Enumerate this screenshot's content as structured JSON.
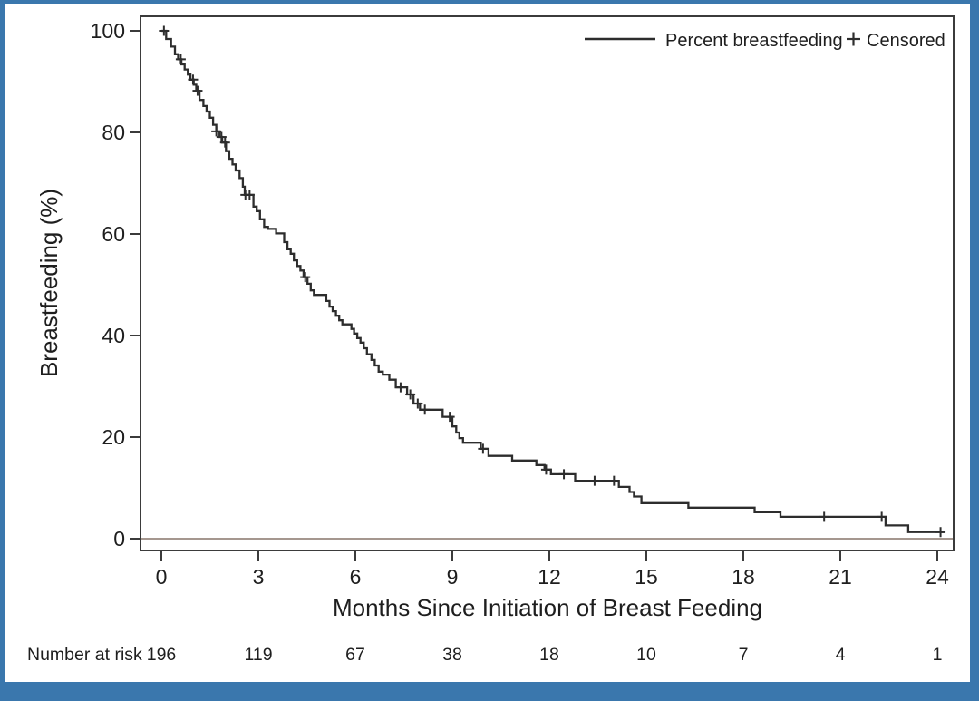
{
  "figure": {
    "background": "#ffffff",
    "border_color": "#3a77ad"
  },
  "legend": {
    "series_label": "Percent breastfeeding",
    "censored_label": "Censored"
  },
  "axes": {
    "y_label": "Breastfeeding (%)",
    "x_label": "Months Since Initiation of Breast Feeding"
  },
  "chart_data": {
    "type": "line",
    "subtype": "kaplan-meier-step",
    "title": "",
    "xlabel": "Months Since Initiation of Breast Feeding",
    "ylabel": "Breastfeeding (%)",
    "xlim": [
      0,
      24
    ],
    "ylim": [
      0,
      100
    ],
    "x_ticks": [
      0,
      3,
      6,
      9,
      12,
      15,
      18,
      21,
      24
    ],
    "y_ticks": [
      0,
      20,
      40,
      60,
      80,
      100
    ],
    "grid": false,
    "legend_position": "top-right",
    "reference_line_y": 0,
    "series": [
      {
        "name": "Percent breastfeeding",
        "start": [
          0,
          100
        ],
        "end_x": 24.25,
        "steps": [
          [
            0.15,
            98.4
          ],
          [
            0.3,
            96.9
          ],
          [
            0.42,
            95.4
          ],
          [
            0.52,
            94.4
          ],
          [
            0.62,
            93.4
          ],
          [
            0.72,
            92.4
          ],
          [
            0.82,
            91.4
          ],
          [
            0.9,
            90.4
          ],
          [
            1.0,
            89.4
          ],
          [
            1.08,
            88.2
          ],
          [
            1.18,
            86.4
          ],
          [
            1.3,
            85.2
          ],
          [
            1.4,
            84.1
          ],
          [
            1.5,
            82.9
          ],
          [
            1.6,
            81.5
          ],
          [
            1.7,
            80.2
          ],
          [
            1.8,
            79.1
          ],
          [
            1.88,
            78.0
          ],
          [
            2.0,
            76.3
          ],
          [
            2.1,
            74.8
          ],
          [
            2.2,
            73.7
          ],
          [
            2.3,
            72.5
          ],
          [
            2.42,
            71.0
          ],
          [
            2.52,
            69.3
          ],
          [
            2.58,
            67.7
          ],
          [
            2.85,
            65.4
          ],
          [
            2.95,
            64.5
          ],
          [
            3.05,
            62.9
          ],
          [
            3.18,
            61.4
          ],
          [
            3.3,
            61.0
          ],
          [
            3.55,
            60.1
          ],
          [
            3.8,
            58.4
          ],
          [
            3.9,
            57.0
          ],
          [
            4.0,
            56.1
          ],
          [
            4.1,
            54.8
          ],
          [
            4.2,
            53.7
          ],
          [
            4.3,
            52.8
          ],
          [
            4.4,
            51.5
          ],
          [
            4.52,
            50.2
          ],
          [
            4.62,
            48.9
          ],
          [
            4.72,
            48.0
          ],
          [
            5.1,
            46.8
          ],
          [
            5.2,
            45.7
          ],
          [
            5.3,
            44.8
          ],
          [
            5.4,
            43.9
          ],
          [
            5.5,
            43.0
          ],
          [
            5.6,
            42.2
          ],
          [
            5.88,
            41.3
          ],
          [
            5.96,
            40.4
          ],
          [
            6.06,
            39.5
          ],
          [
            6.16,
            38.6
          ],
          [
            6.26,
            37.5
          ],
          [
            6.36,
            36.3
          ],
          [
            6.5,
            35.2
          ],
          [
            6.6,
            34.1
          ],
          [
            6.72,
            32.9
          ],
          [
            6.85,
            32.3
          ],
          [
            7.05,
            31.3
          ],
          [
            7.25,
            29.8
          ],
          [
            7.6,
            28.4
          ],
          [
            7.8,
            26.6
          ],
          [
            8.0,
            25.4
          ],
          [
            8.7,
            24.0
          ],
          [
            9.0,
            22.1
          ],
          [
            9.12,
            20.9
          ],
          [
            9.22,
            19.8
          ],
          [
            9.33,
            18.9
          ],
          [
            9.88,
            17.7
          ],
          [
            10.12,
            16.3
          ],
          [
            10.85,
            15.4
          ],
          [
            11.6,
            14.5
          ],
          [
            11.85,
            13.6
          ],
          [
            12.05,
            12.7
          ],
          [
            12.8,
            11.4
          ],
          [
            14.15,
            10.2
          ],
          [
            14.48,
            9.2
          ],
          [
            14.62,
            8.3
          ],
          [
            14.85,
            7.0
          ],
          [
            16.3,
            6.1
          ],
          [
            18.35,
            5.2
          ],
          [
            19.15,
            4.3
          ],
          [
            22.4,
            2.6
          ],
          [
            23.1,
            1.3
          ]
        ]
      }
    ],
    "censored_x": [
      0.08,
      0.6,
      0.98,
      1.12,
      1.7,
      1.86,
      1.97,
      2.6,
      2.73,
      4.45,
      7.4,
      7.7,
      7.93,
      8.15,
      8.92,
      9.95,
      11.9,
      12.45,
      13.4,
      14.0,
      20.5,
      22.28,
      24.1
    ],
    "number_at_risk": {
      "label": "Number at risk",
      "times": [
        0,
        3,
        6,
        9,
        12,
        15,
        18,
        21,
        24
      ],
      "counts": [
        196,
        119,
        67,
        38,
        18,
        10,
        7,
        4,
        1
      ]
    },
    "colors": {
      "line": "#2d2d2d",
      "censor": "#2d2d2d",
      "frame": "#3b3b3b",
      "reference_line": "#a5978f",
      "text": "#1e1e1e"
    }
  }
}
